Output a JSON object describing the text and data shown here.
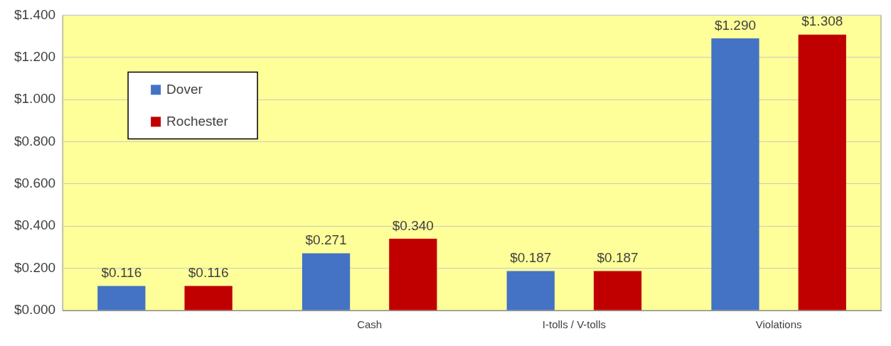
{
  "chart_data": {
    "type": "bar",
    "categories": [
      null,
      "Cash",
      "I-tolls / V-tolls",
      "Violations"
    ],
    "series": [
      {
        "name": "Dover",
        "color": "#4472c4",
        "values": [
          0.116,
          0.271,
          0.187,
          1.29
        ],
        "value_labels": [
          "$0.116",
          "$0.271",
          "$0.187",
          "$1.290"
        ]
      },
      {
        "name": "Rochester",
        "color": "#c00000",
        "values": [
          0.116,
          0.34,
          0.187,
          1.308
        ],
        "value_labels": [
          "$0.116",
          "$0.340",
          "$0.187",
          "$1.308"
        ]
      }
    ],
    "ylim": [
      0,
      1.4
    ],
    "yticks": [
      {
        "value": 0,
        "label": "$0.000"
      },
      {
        "value": 0.2,
        "label": "$0.200"
      },
      {
        "value": 0.4,
        "label": "$0.400"
      },
      {
        "value": 0.6,
        "label": "$0.600"
      },
      {
        "value": 0.8,
        "label": "$0.800"
      },
      {
        "value": 1,
        "label": "$1.000"
      },
      {
        "value": 1.2,
        "label": "$1.200"
      },
      {
        "value": 1.4,
        "label": "$1.400"
      }
    ],
    "grid": "y",
    "legend": "top left"
  }
}
